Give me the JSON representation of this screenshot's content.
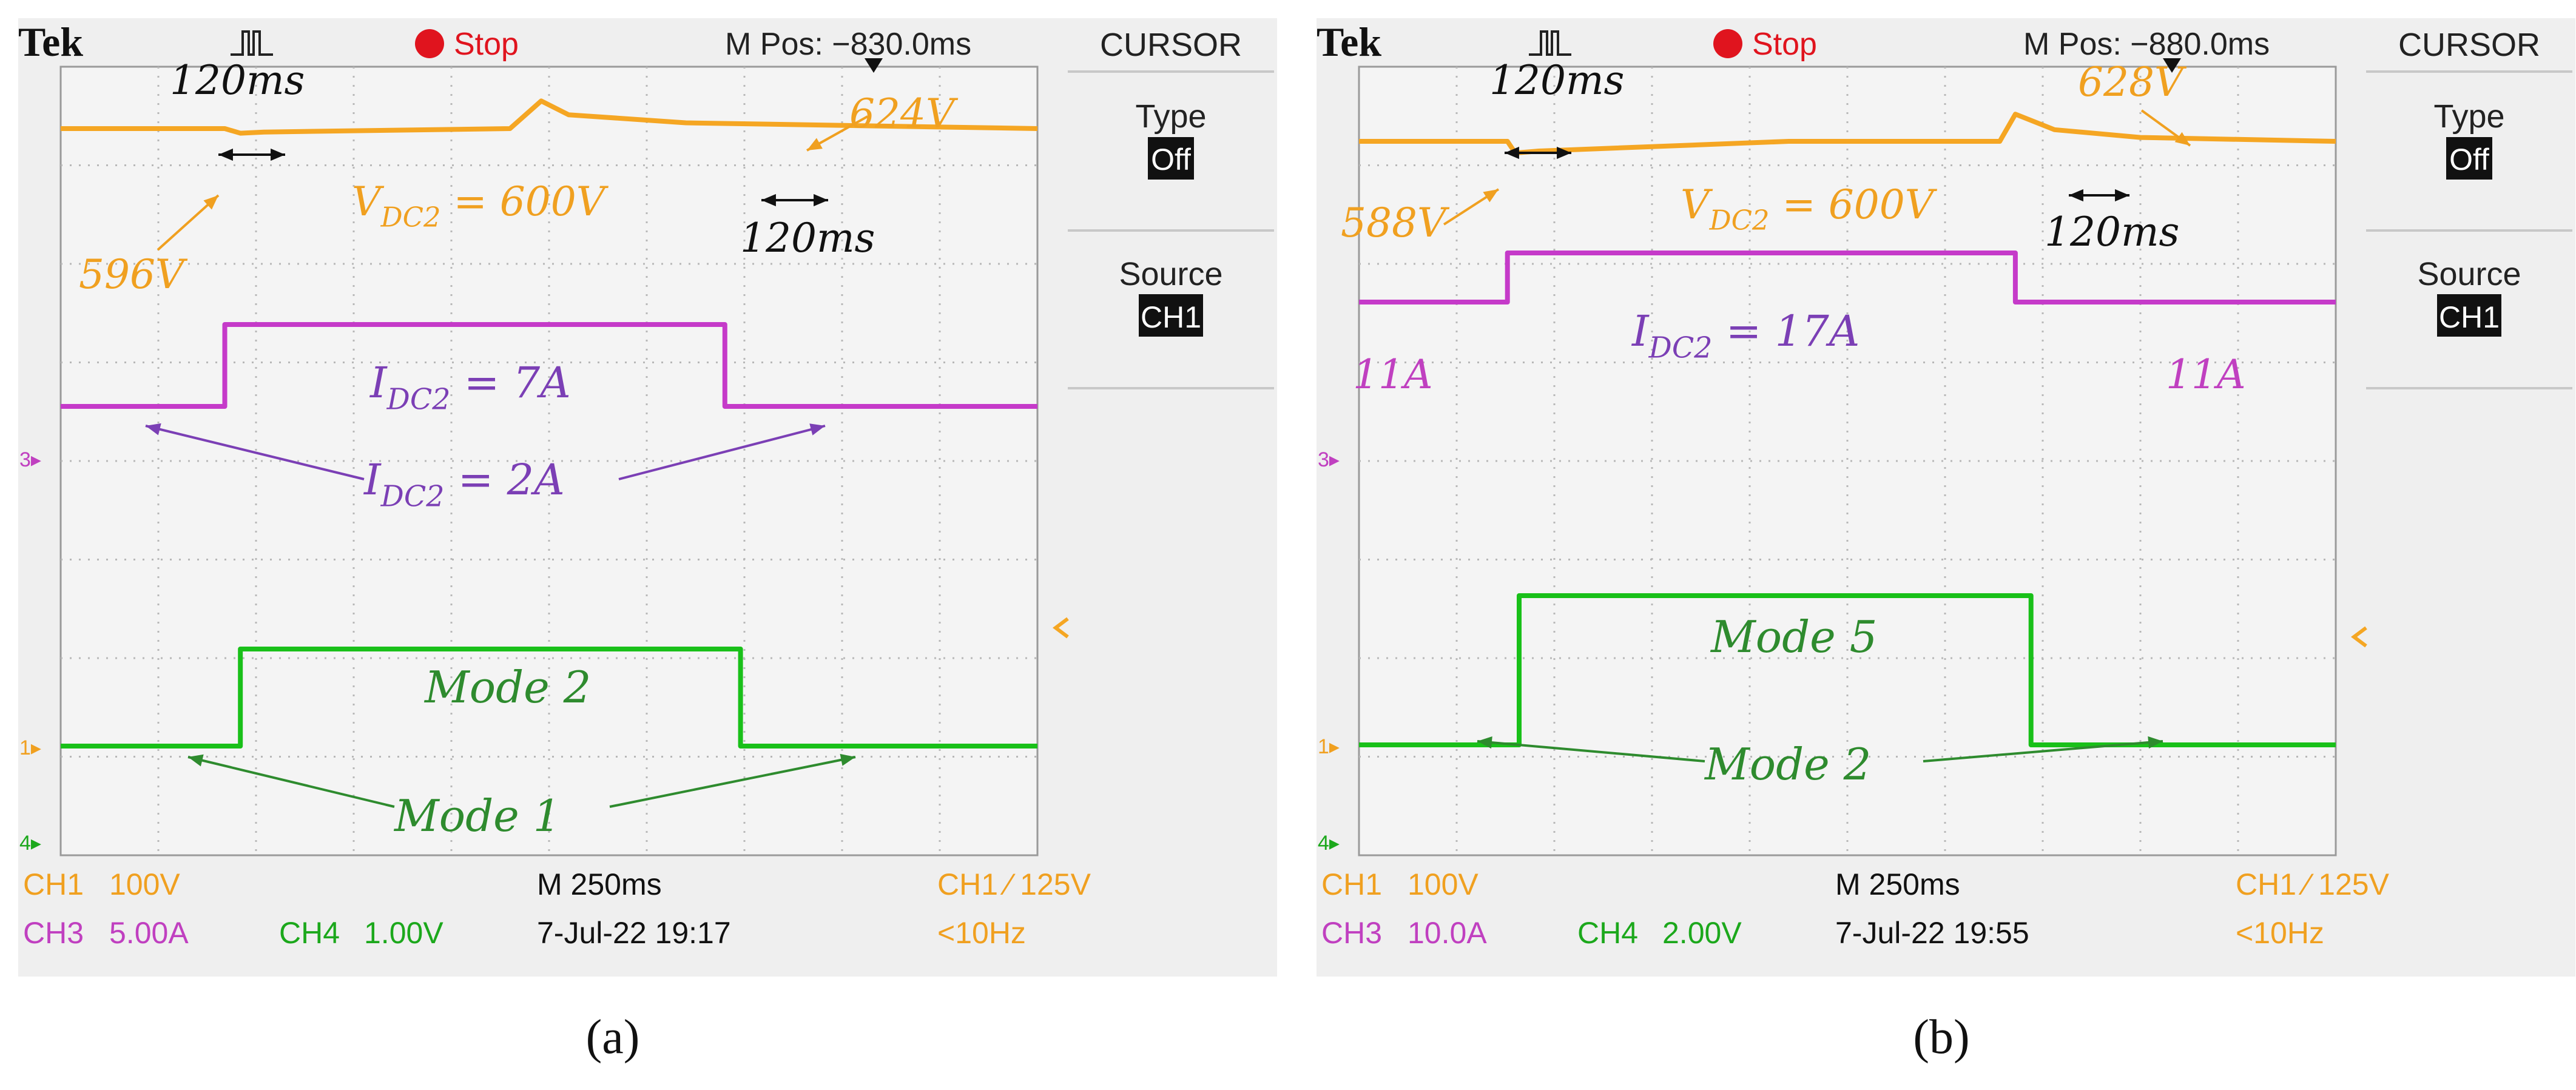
{
  "colors": {
    "ch1": "#f5a623",
    "ch1_text": "#f0a020",
    "ch3": "#c53ac9",
    "ch3_text": "#c040c0",
    "ch4": "#19c019",
    "ch4_text": "#1ca81c",
    "annotation_purple": "#7b3fb5",
    "annotation_green": "#2e8b2e",
    "stop_red": "#e0141e",
    "grid": "#b8b8b8",
    "screen_bg": "#f4f4f4",
    "panel_bg": "#efefef"
  },
  "panels": [
    {
      "id": "a",
      "caption": "(a)",
      "header": {
        "brand": "Tek",
        "trigger_icon": "trigger-pulse-icon",
        "state": "Stop",
        "mpos": "M Pos: −830.0ms"
      },
      "menu": {
        "title": "CURSOR",
        "type_label": "Type",
        "type_value": "Off",
        "source_label": "Source",
        "source_value": "CH1"
      },
      "markers": {
        "ch3": "3",
        "ch1": "1",
        "ch4": "4"
      },
      "footer": {
        "ch1_name": "CH1",
        "ch1_scale": "100V",
        "ch3_name": "CH3",
        "ch3_scale": "5.00A",
        "ch4_name": "CH4",
        "ch4_scale": "1.00V",
        "timebase": "M 250ms",
        "datetime": "7-Jul-22 19:17",
        "trigger": "CH1 ∕ 125V",
        "freq": "<10Hz"
      },
      "annotations": {
        "vdc_label": "V",
        "vdc_sub": "DC2",
        "vdc_rhs": " = 600V",
        "v_low": "596V",
        "v_high": "624V",
        "t1": "120ms",
        "t2": "120ms",
        "i_high_label": "I",
        "i_high_sub": "DC2",
        "i_high_rhs": " = 7A",
        "i_low_label": "I",
        "i_low_sub": "DC2",
        "i_low_rhs": " = 2A",
        "i_left": "",
        "i_right": "",
        "mode_high": "Mode 2",
        "mode_low": "Mode 1"
      },
      "chart_data": {
        "type": "line",
        "time_unit": "ms",
        "time_per_division_ms": 250,
        "x_divisions": 10,
        "series": [
          {
            "name": "CH1",
            "unit": "V",
            "points": [
              [
                0,
                600
              ],
              [
                420,
                600
              ],
              [
                460,
                596
              ],
              [
                520,
                597
              ],
              [
                1150,
                600
              ],
              [
                1230,
                624
              ],
              [
                1300,
                612
              ],
              [
                1600,
                605
              ],
              [
                2500,
                600
              ]
            ]
          },
          {
            "name": "CH3",
            "unit": "A",
            "points": [
              [
                0,
                2
              ],
              [
                420,
                2
              ],
              [
                420,
                7
              ],
              [
                1700,
                7
              ],
              [
                1700,
                2
              ],
              [
                2500,
                2
              ]
            ]
          },
          {
            "name": "CH4",
            "unit": "V",
            "points": [
              [
                0,
                0
              ],
              [
                460,
                0
              ],
              [
                460,
                1
              ],
              [
                1740,
                1
              ],
              [
                1740,
                0
              ],
              [
                2500,
                0
              ]
            ]
          }
        ]
      }
    },
    {
      "id": "b",
      "caption": "(b)",
      "header": {
        "brand": "Tek",
        "trigger_icon": "trigger-pulse-icon",
        "state": "Stop",
        "mpos": "M Pos: −880.0ms"
      },
      "menu": {
        "title": "CURSOR",
        "type_label": "Type",
        "type_value": "Off",
        "source_label": "Source",
        "source_value": "CH1"
      },
      "markers": {
        "ch3": "3",
        "ch1": "1",
        "ch4": "4"
      },
      "footer": {
        "ch1_name": "CH1",
        "ch1_scale": "100V",
        "ch3_name": "CH3",
        "ch3_scale": "10.0A",
        "ch4_name": "CH4",
        "ch4_scale": "2.00V",
        "timebase": "M 250ms",
        "datetime": "7-Jul-22 19:55",
        "trigger": "CH1 ∕ 125V",
        "freq": "<10Hz"
      },
      "annotations": {
        "vdc_label": "V",
        "vdc_sub": "DC2",
        "vdc_rhs": " = 600V",
        "v_low": "588V",
        "v_high": "628V",
        "t1": "120ms",
        "t2": "120ms",
        "i_high_label": "I",
        "i_high_sub": "DC2",
        "i_high_rhs": " = 17A",
        "i_low_label": "",
        "i_low_sub": "",
        "i_low_rhs": "",
        "i_left": "11A",
        "i_right": "11A",
        "mode_high": "Mode 5",
        "mode_low": "Mode 2"
      },
      "chart_data": {
        "type": "line",
        "time_unit": "ms",
        "time_per_division_ms": 250,
        "x_divisions": 10,
        "series": [
          {
            "name": "CH1",
            "unit": "V",
            "points": [
              [
                0,
                600
              ],
              [
                380,
                600
              ],
              [
                400,
                588
              ],
              [
                460,
                590
              ],
              [
                1100,
                600
              ],
              [
                1640,
                600
              ],
              [
                1680,
                628
              ],
              [
                1780,
                612
              ],
              [
                2000,
                604
              ],
              [
                2500,
                600
              ]
            ]
          },
          {
            "name": "CH3",
            "unit": "A",
            "points": [
              [
                0,
                11
              ],
              [
                380,
                11
              ],
              [
                380,
                17
              ],
              [
                1680,
                17
              ],
              [
                1680,
                11
              ],
              [
                2500,
                11
              ]
            ]
          },
          {
            "name": "CH4",
            "unit": "V",
            "points": [
              [
                0,
                0
              ],
              [
                410,
                0
              ],
              [
                410,
                2
              ],
              [
                1720,
                2
              ],
              [
                1720,
                0
              ],
              [
                2500,
                0
              ]
            ]
          }
        ]
      }
    }
  ]
}
